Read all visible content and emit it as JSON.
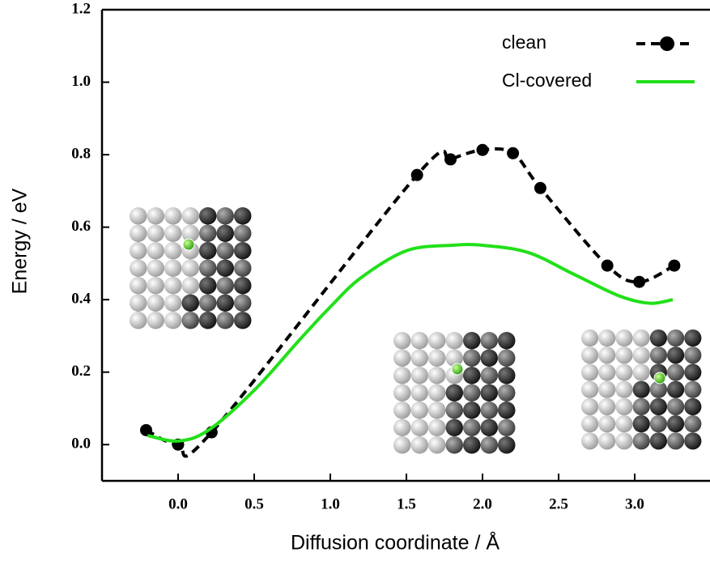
{
  "chart_data": {
    "type": "line",
    "xlabel": "Diffusion coordinate / Å",
    "ylabel": "Energy / eV",
    "xlim": [
      -0.5,
      3.5
    ],
    "ylim": [
      -0.1,
      1.2
    ],
    "xticks": [
      {
        "value": 0,
        "label": "0.0"
      },
      0.5,
      {
        "value": 1,
        "label": "1.0"
      },
      1.5,
      {
        "value": 2,
        "label": "2.0"
      },
      2.5,
      {
        "value": 3,
        "label": "3.0"
      }
    ],
    "yticks": [
      {
        "value": 0,
        "label": "0.0"
      },
      0.2,
      0.4,
      0.6,
      0.8,
      {
        "value": 1,
        "label": "1.0"
      },
      1.2
    ],
    "legend": "upper right",
    "series": [
      {
        "name": "clean",
        "color": "#000000",
        "style": "dashed-markers",
        "x": [
          -0.21,
          0,
          0.22,
          1.57,
          1.79,
          2.0,
          2.2,
          2.38,
          2.82,
          3.03,
          3.26
        ],
        "values": [
          0.04,
          0,
          0.034,
          0.744,
          0.787,
          0.813,
          0.804,
          0.708,
          0.494,
          0.449,
          0.494
        ]
      },
      {
        "name": "Cl-covered",
        "color": "#22e01a",
        "style": "solid",
        "x": [
          -0.2,
          0,
          0.2,
          0.5,
          0.8,
          1.0,
          1.2,
          1.5,
          1.8,
          2.0,
          2.3,
          2.6,
          2.9,
          3.1,
          3.25
        ],
        "values": [
          0.025,
          0.01,
          0.04,
          0.15,
          0.29,
          0.38,
          0.46,
          0.535,
          0.55,
          0.55,
          0.53,
          0.47,
          0.41,
          0.39,
          0.4
        ]
      }
    ]
  }
}
